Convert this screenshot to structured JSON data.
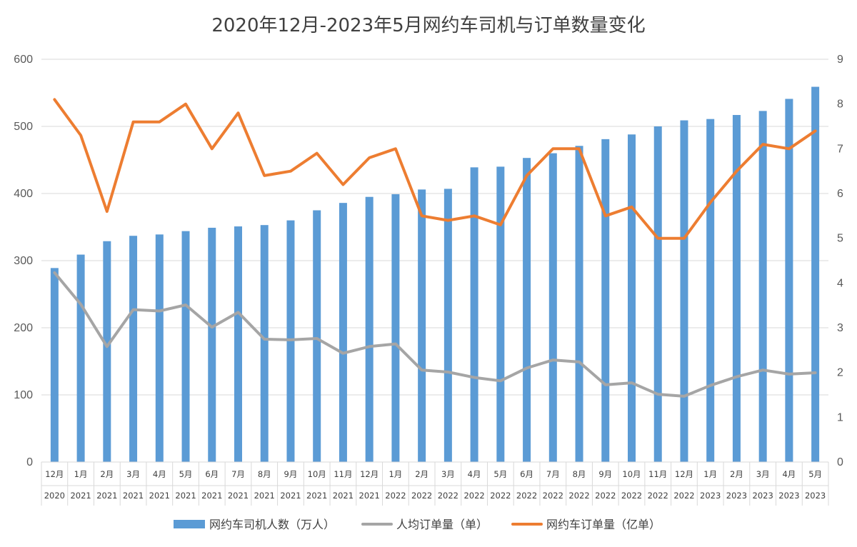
{
  "chart_data": {
    "type": "bar+line",
    "title": "2020年12月-2023年5月网约车司机与订单数量变化",
    "categories": [
      {
        "month": "12月",
        "year": "2020"
      },
      {
        "month": "1月",
        "year": "2021"
      },
      {
        "month": "2月",
        "year": "2021"
      },
      {
        "month": "3月",
        "year": "2021"
      },
      {
        "month": "4月",
        "year": "2021"
      },
      {
        "month": "5月",
        "year": "2021"
      },
      {
        "month": "6月",
        "year": "2021"
      },
      {
        "month": "7月",
        "year": "2021"
      },
      {
        "month": "8月",
        "year": "2021"
      },
      {
        "month": "9月",
        "year": "2021"
      },
      {
        "month": "10月",
        "year": "2021"
      },
      {
        "month": "11月",
        "year": "2021"
      },
      {
        "month": "12月",
        "year": "2021"
      },
      {
        "month": "1月",
        "year": "2022"
      },
      {
        "month": "2月",
        "year": "2022"
      },
      {
        "month": "3月",
        "year": "2022"
      },
      {
        "month": "4月",
        "year": "2022"
      },
      {
        "month": "5月",
        "year": "2022"
      },
      {
        "month": "6月",
        "year": "2022"
      },
      {
        "month": "7月",
        "year": "2022"
      },
      {
        "month": "8月",
        "year": "2022"
      },
      {
        "month": "9月",
        "year": "2022"
      },
      {
        "month": "10月",
        "year": "2022"
      },
      {
        "month": "11月",
        "year": "2022"
      },
      {
        "month": "12月",
        "year": "2022"
      },
      {
        "month": "1月",
        "year": "2023"
      },
      {
        "month": "2月",
        "year": "2023"
      },
      {
        "month": "3月",
        "year": "2023"
      },
      {
        "month": "4月",
        "year": "2023"
      },
      {
        "month": "5月",
        "year": "2023"
      }
    ],
    "y_left": {
      "min": 0,
      "max": 600,
      "ticks": [
        0,
        100,
        200,
        300,
        400,
        500,
        600
      ]
    },
    "y_right": {
      "min": 0,
      "max": 9,
      "ticks": [
        0,
        1,
        2,
        3,
        4,
        5,
        6,
        7,
        8,
        9
      ]
    },
    "series": [
      {
        "name": "网约车司机人数（万人）",
        "type": "bar",
        "axis": "left",
        "color": "#5B9BD5",
        "values": [
          289,
          309,
          329,
          337,
          339,
          344,
          349,
          351,
          353,
          360,
          375,
          386,
          395,
          399,
          406,
          407,
          439,
          440,
          453,
          460,
          471,
          481,
          488,
          500,
          509,
          511,
          517,
          523,
          541,
          559
        ]
      },
      {
        "name": "人均订单量（单）",
        "type": "line",
        "axis": "left",
        "color": "#A5A5A5",
        "values": [
          282,
          235,
          172,
          227,
          225,
          234,
          201,
          223,
          183,
          182,
          184,
          162,
          172,
          176,
          137,
          134,
          126,
          121,
          140,
          152,
          149,
          115,
          118,
          101,
          98,
          114,
          127,
          137,
          131,
          133
        ]
      },
      {
        "name": "网约车订单量（亿单）",
        "type": "line",
        "axis": "right",
        "color": "#ED7D31",
        "values": [
          8.1,
          7.3,
          5.6,
          7.6,
          7.6,
          8.0,
          7.0,
          7.8,
          6.4,
          6.5,
          6.9,
          6.2,
          6.8,
          7.0,
          5.5,
          5.4,
          5.5,
          5.3,
          6.4,
          7.0,
          7.0,
          5.5,
          5.7,
          5.0,
          5.0,
          5.8,
          6.5,
          7.1,
          7.0,
          7.4
        ]
      }
    ],
    "legend_position": "bottom"
  }
}
